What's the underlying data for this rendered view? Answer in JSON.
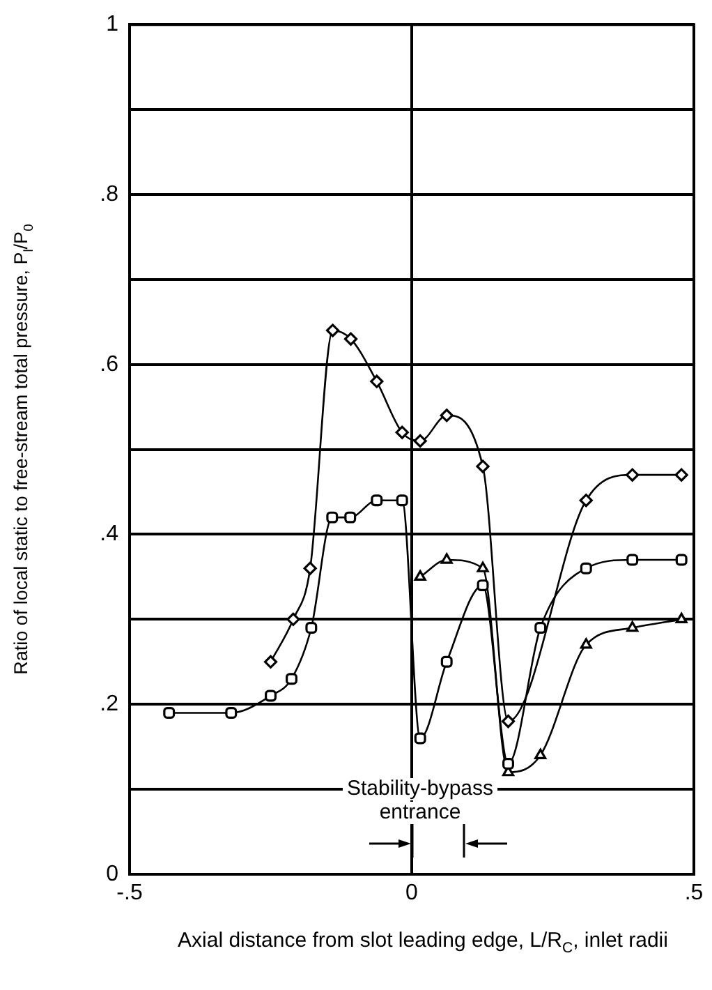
{
  "chart_data": {
    "type": "line",
    "xlabel": "Axial distance from slot leading edge, L/R$_{C}$, inlet radii",
    "ylabel": "Ratio of local static to free-stream total pressure, P$_{l}$/P$_{0}$",
    "xlim": [
      -0.5,
      0.5
    ],
    "xticks": [
      {
        "value": -0.5,
        "label": "-.5"
      },
      0,
      {
        "value": 0.5,
        "label": ".5"
      }
    ],
    "ylim": [
      0,
      1
    ],
    "yticks": [
      0,
      {
        "value": 0.1,
        "label": null
      },
      {
        "value": 0.2,
        "label": ".2"
      },
      {
        "value": 0.3,
        "label": null
      },
      {
        "value": 0.4,
        "label": ".4"
      },
      {
        "value": 0.5,
        "label": null
      },
      {
        "value": 0.6,
        "label": ".6"
      },
      {
        "value": 0.7,
        "label": null
      },
      {
        "value": 0.8,
        "label": ".8"
      },
      {
        "value": 0.9,
        "label": null
      },
      1
    ],
    "grid": "y",
    "legend": false,
    "line_style": "solid",
    "ref_lines": [
      {
        "axis": "x",
        "value": 0,
        "color": "#000000"
      }
    ],
    "annotations": [
      {
        "text": "Stability-bypass entrance",
        "x": 0,
        "y": 0.1
      }
    ],
    "series": [
      {
        "color": "#000000",
        "marker": "diamond",
        "x": [
          -0.25,
          -0.21,
          -0.18,
          -0.14,
          -0.108,
          -0.062,
          -0.017,
          0.015,
          0.062,
          0.126,
          0.171,
          0.309,
          0.391,
          0.478
        ],
        "values": [
          0.25,
          0.3,
          0.36,
          0.64,
          0.63,
          0.58,
          0.52,
          0.51,
          0.54,
          0.48,
          0.18,
          0.44,
          0.47,
          0.47
        ]
      },
      {
        "color": "#000000",
        "marker": "square",
        "x": [
          -0.43,
          -0.32,
          -0.25,
          -0.213,
          -0.178,
          -0.141,
          -0.109,
          -0.062,
          -0.017,
          0.015,
          0.062,
          0.126,
          0.171,
          0.228,
          0.309,
          0.391,
          0.478
        ],
        "values": [
          0.19,
          0.19,
          0.21,
          0.23,
          0.29,
          0.42,
          0.42,
          0.44,
          0.44,
          0.16,
          0.25,
          0.34,
          0.13,
          0.29,
          0.36,
          0.37,
          0.37
        ]
      },
      {
        "color": "#000000",
        "marker": "triangle",
        "x": [
          0.015,
          0.062,
          0.126,
          0.171,
          0.228,
          0.309,
          0.391,
          0.478
        ],
        "values": [
          0.35,
          0.37,
          0.36,
          0.12,
          0.14,
          0.27,
          0.29,
          0.3
        ]
      }
    ]
  }
}
